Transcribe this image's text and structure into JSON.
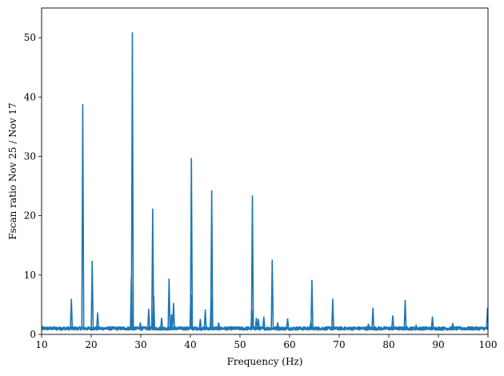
{
  "chart_data": {
    "type": "line",
    "xlabel": "Frequency (Hz)",
    "ylabel": "Fscan ratio Nov 25 / Nov 17",
    "xlim": [
      10,
      100
    ],
    "ylim": [
      0,
      55
    ],
    "xticks": [
      10,
      20,
      30,
      40,
      50,
      60,
      70,
      80,
      90,
      100
    ],
    "yticks": [
      0,
      10,
      20,
      30,
      40,
      50
    ],
    "grid": false,
    "series": [
      {
        "color": "#1f77b4",
        "baseline": 1.0,
        "noise_band": [
          0.5,
          1.5
        ],
        "peaks": [
          {
            "x": 16.0,
            "y": 6.0
          },
          {
            "x": 18.3,
            "y": 38.8
          },
          {
            "x": 20.2,
            "y": 12.4
          },
          {
            "x": 21.3,
            "y": 3.7
          },
          {
            "x": 28.3,
            "y": 50.9
          },
          {
            "x": 28.1,
            "y": 9.6
          },
          {
            "x": 29.9,
            "y": 2.0
          },
          {
            "x": 31.6,
            "y": 4.3
          },
          {
            "x": 32.4,
            "y": 21.2
          },
          {
            "x": 32.6,
            "y": 6.5
          },
          {
            "x": 34.2,
            "y": 2.8
          },
          {
            "x": 35.7,
            "y": 9.4
          },
          {
            "x": 36.2,
            "y": 3.4
          },
          {
            "x": 36.6,
            "y": 5.3
          },
          {
            "x": 40.2,
            "y": 29.7
          },
          {
            "x": 40.1,
            "y": 6.7
          },
          {
            "x": 42.0,
            "y": 2.6
          },
          {
            "x": 43.0,
            "y": 4.2
          },
          {
            "x": 44.3,
            "y": 24.3
          },
          {
            "x": 44.2,
            "y": 6.4
          },
          {
            "x": 45.7,
            "y": 2.0
          },
          {
            "x": 52.5,
            "y": 23.4
          },
          {
            "x": 52.4,
            "y": 4.2
          },
          {
            "x": 53.3,
            "y": 2.8
          },
          {
            "x": 53.7,
            "y": 2.6
          },
          {
            "x": 54.8,
            "y": 3.0
          },
          {
            "x": 56.5,
            "y": 12.6
          },
          {
            "x": 57.6,
            "y": 2.0
          },
          {
            "x": 59.6,
            "y": 2.7
          },
          {
            "x": 64.5,
            "y": 9.2
          },
          {
            "x": 64.3,
            "y": 2.2
          },
          {
            "x": 68.7,
            "y": 6.0
          },
          {
            "x": 75.9,
            "y": 1.8
          },
          {
            "x": 76.8,
            "y": 4.5
          },
          {
            "x": 80.8,
            "y": 3.2
          },
          {
            "x": 83.3,
            "y": 5.8
          },
          {
            "x": 85.5,
            "y": 1.5
          },
          {
            "x": 88.8,
            "y": 3.0
          },
          {
            "x": 92.9,
            "y": 1.9
          },
          {
            "x": 99.9,
            "y": 4.5
          }
        ]
      }
    ]
  }
}
